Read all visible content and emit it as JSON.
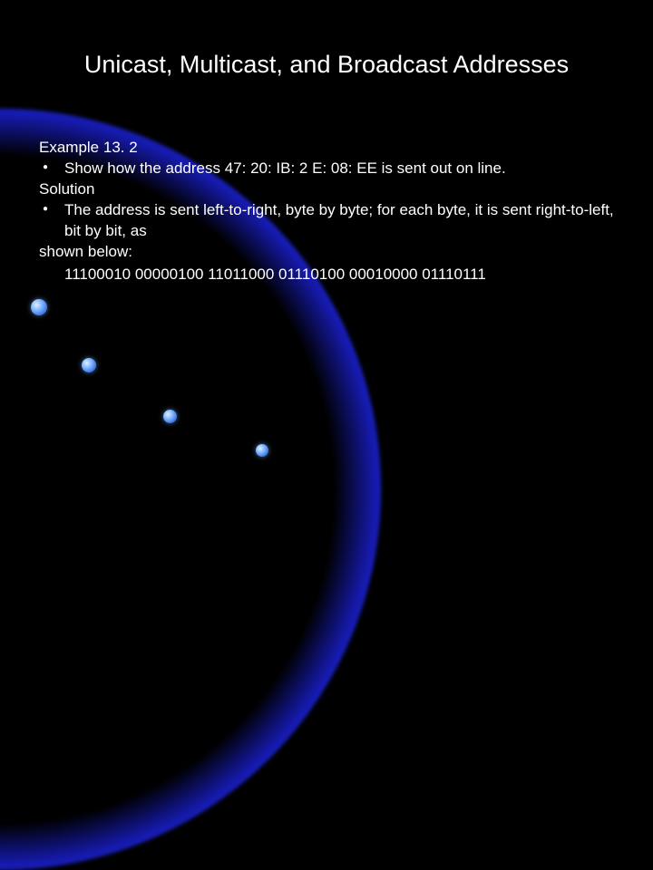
{
  "slide": {
    "title": "Unicast, Multicast, and Broadcast Addresses",
    "example_label": "Example 13. 2",
    "bullet1": "Show how the address 47: 20: IB: 2 E: 08: EE is sent out on line.",
    "solution_label": "Solution",
    "bullet2": "The address is sent left-to-right, byte by byte; for each byte, it is sent right-to-left, bit by bit, as",
    "shown_below": "shown below:",
    "binary": "11100010 00000100 11011000 01110100 00010000 01110111"
  },
  "style": {
    "background_color": "#000000",
    "text_color": "#ffffff",
    "title_fontsize": 27,
    "body_fontsize": 17,
    "arc_primary": "#2840ff",
    "dot_highlight": "#dff1ff",
    "dot_mid": "#6fa8ff",
    "dot_shadow": "#1a3db8"
  }
}
